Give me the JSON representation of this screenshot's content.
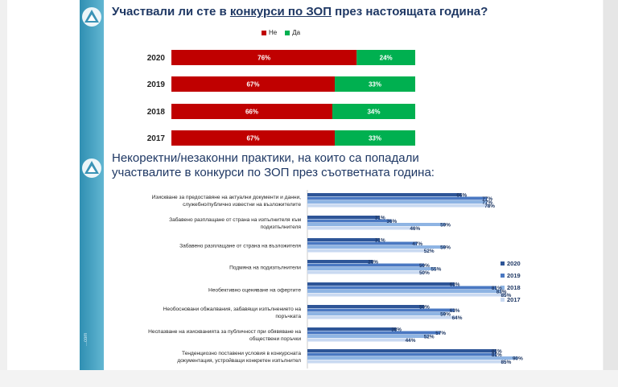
{
  "chart_data": [
    {
      "type": "bar",
      "orientation": "horizontal",
      "stacked": true,
      "title": "Участвали ли сте в конкурси по ЗОП през настоящата година?",
      "title_parts": [
        "Участвали ли сте в ",
        "конкурси по ЗОП",
        " през настоящата година?"
      ],
      "categories": [
        "2020",
        "2019",
        "2018",
        "2017"
      ],
      "series": [
        {
          "name": "Не",
          "values": [
            76,
            67,
            66,
            67
          ],
          "color": "#c00000"
        },
        {
          "name": "Да",
          "values": [
            24,
            33,
            34,
            33
          ],
          "color": "#00b050"
        }
      ],
      "value_suffix": "%",
      "xlim": [
        0,
        100
      ],
      "legend": "top"
    },
    {
      "type": "bar",
      "orientation": "horizontal",
      "title": "Некоректни/незаконни практики, на които са попадали участвалите в конкурси по ЗОП през съответната година:",
      "title_lines": [
        "Некоректни/незаконни практики, на които са попадали",
        "участвалите в конкурси по ЗОП през съответната година:"
      ],
      "categories": [
        [
          "Изискване за предоставяне на актуални документи и данни,",
          "служебно/публично известни на възложителите"
        ],
        [
          "Забавено разплащане от страна на изпълнителя към",
          "подизпълнителя"
        ],
        [
          "Забавено разплащане от страна на възложителя"
        ],
        [
          "Подмяна на подизпълнители"
        ],
        [
          "Необективно оценяване на офертите"
        ],
        [
          "Необосновани обжалвания, забавящи изпълнението на",
          "поръчката"
        ],
        [
          "Неспазване на изискванията за публичност при обявяване на",
          "обществени поръчки"
        ],
        [
          "Тенденциозно поставени условия в конкурсната",
          "документация, устройващи конкретен изпълнител"
        ]
      ],
      "series": [
        {
          "name": "2020",
          "values": [
            66,
            31,
            31,
            28,
            63,
            50,
            38,
            81
          ],
          "color": "#2e5597"
        },
        {
          "name": "2019",
          "values": [
            77,
            36,
            47,
            50,
            81,
            63,
            57,
            81
          ],
          "color": "#4a78c2"
        },
        {
          "name": "2018",
          "values": [
            77,
            59,
            59,
            55,
            83,
            59,
            52,
            90
          ],
          "color": "#8eb4e3"
        },
        {
          "name": "2017",
          "values": [
            78,
            46,
            52,
            50,
            85,
            64,
            44,
            85
          ],
          "color": "#c9d9f1"
        }
      ],
      "value_suffix": "%",
      "xlim": [
        0,
        100
      ],
      "legend": "right"
    }
  ],
  "footer_text": "...com"
}
